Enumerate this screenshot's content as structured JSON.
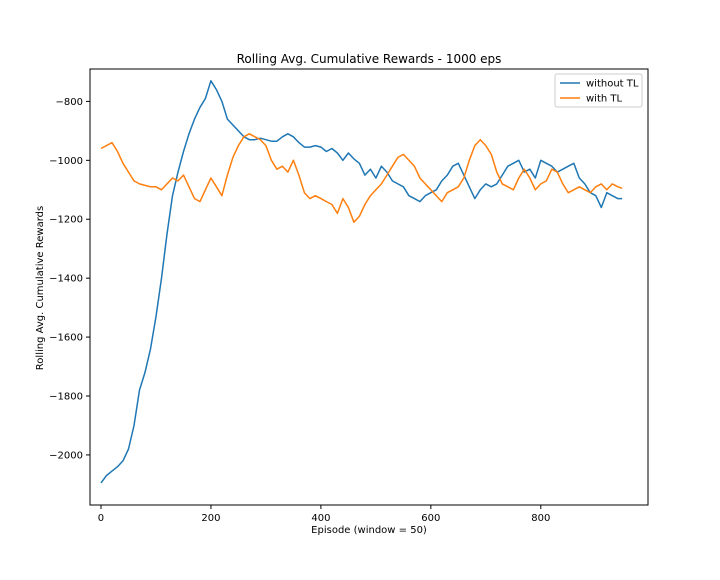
{
  "figure": {
    "title": "Rolling Avg. Cumulative Rewards - 1000 eps",
    "xlabel": "Episode (window = 50)",
    "ylabel": "Rolling Avg. Cumulative Rewards"
  },
  "chart_data": {
    "type": "line",
    "title": "Rolling Avg. Cumulative Rewards - 1000 eps",
    "xlabel": "Episode (window = 50)",
    "ylabel": "Rolling Avg. Cumulative Rewards",
    "xlim": [
      -20,
      995
    ],
    "ylim": [
      -2170,
      -690
    ],
    "xticks": [
      0,
      200,
      400,
      600,
      800
    ],
    "yticks": [
      -2000,
      -1800,
      -1600,
      -1400,
      -1200,
      -1000,
      -800
    ],
    "grid": false,
    "legend_position": "top-right",
    "series": [
      {
        "name": "without TL",
        "color": "#1f77b4",
        "x": [
          0,
          10,
          20,
          30,
          40,
          50,
          60,
          70,
          80,
          90,
          100,
          110,
          120,
          130,
          140,
          150,
          160,
          170,
          180,
          190,
          200,
          210,
          220,
          230,
          240,
          250,
          260,
          270,
          280,
          290,
          300,
          310,
          320,
          330,
          340,
          350,
          360,
          370,
          380,
          390,
          400,
          410,
          420,
          430,
          440,
          450,
          460,
          470,
          480,
          490,
          500,
          510,
          520,
          530,
          540,
          550,
          560,
          570,
          580,
          590,
          600,
          610,
          620,
          630,
          640,
          650,
          660,
          670,
          680,
          690,
          700,
          710,
          720,
          730,
          740,
          750,
          760,
          770,
          780,
          790,
          800,
          810,
          820,
          830,
          840,
          850,
          860,
          870,
          880,
          890,
          900,
          910,
          920,
          930,
          940,
          948
        ],
        "values": [
          -2095,
          -2070,
          -2055,
          -2040,
          -2020,
          -1980,
          -1900,
          -1780,
          -1720,
          -1640,
          -1530,
          -1400,
          -1250,
          -1120,
          -1040,
          -970,
          -910,
          -860,
          -820,
          -790,
          -730,
          -760,
          -800,
          -860,
          -880,
          -900,
          -920,
          -930,
          -930,
          -925,
          -930,
          -935,
          -935,
          -920,
          -910,
          -920,
          -940,
          -955,
          -955,
          -950,
          -955,
          -970,
          -960,
          -975,
          -1000,
          -975,
          -995,
          -1010,
          -1050,
          -1030,
          -1060,
          -1020,
          -1040,
          -1070,
          -1080,
          -1090,
          -1120,
          -1130,
          -1140,
          -1120,
          -1110,
          -1100,
          -1070,
          -1050,
          -1020,
          -1010,
          -1050,
          -1090,
          -1130,
          -1100,
          -1080,
          -1090,
          -1080,
          -1050,
          -1020,
          -1010,
          -1000,
          -1040,
          -1030,
          -1060,
          -1000,
          -1010,
          -1020,
          -1040,
          -1030,
          -1020,
          -1010,
          -1060,
          -1080,
          -1110,
          -1120,
          -1160,
          -1110,
          -1120,
          -1130,
          -1130
        ]
      },
      {
        "name": "with TL",
        "color": "#ff7f0e",
        "x": [
          0,
          10,
          20,
          30,
          40,
          50,
          60,
          70,
          80,
          90,
          100,
          110,
          120,
          130,
          140,
          150,
          160,
          170,
          180,
          190,
          200,
          210,
          220,
          230,
          240,
          250,
          260,
          270,
          280,
          290,
          300,
          310,
          320,
          330,
          340,
          350,
          360,
          370,
          380,
          390,
          400,
          410,
          420,
          430,
          440,
          450,
          460,
          470,
          480,
          490,
          500,
          510,
          520,
          530,
          540,
          550,
          560,
          570,
          580,
          590,
          600,
          610,
          620,
          630,
          640,
          650,
          660,
          670,
          680,
          690,
          700,
          710,
          720,
          730,
          740,
          750,
          760,
          770,
          780,
          790,
          800,
          810,
          820,
          830,
          840,
          850,
          860,
          870,
          880,
          890,
          900,
          910,
          920,
          930,
          940,
          948
        ],
        "values": [
          -960,
          -950,
          -940,
          -970,
          -1010,
          -1040,
          -1070,
          -1080,
          -1085,
          -1090,
          -1090,
          -1100,
          -1080,
          -1060,
          -1070,
          -1050,
          -1090,
          -1130,
          -1140,
          -1100,
          -1060,
          -1090,
          -1120,
          -1050,
          -990,
          -950,
          -920,
          -910,
          -920,
          -930,
          -950,
          -1000,
          -1030,
          -1020,
          -1040,
          -1000,
          -1050,
          -1110,
          -1130,
          -1120,
          -1130,
          -1140,
          -1150,
          -1180,
          -1130,
          -1160,
          -1210,
          -1190,
          -1150,
          -1120,
          -1100,
          -1080,
          -1050,
          -1020,
          -990,
          -980,
          -1000,
          -1020,
          -1060,
          -1080,
          -1100,
          -1120,
          -1140,
          -1110,
          -1100,
          -1090,
          -1060,
          -1000,
          -950,
          -930,
          -950,
          -980,
          -1040,
          -1080,
          -1090,
          -1100,
          -1060,
          -1030,
          -1060,
          -1100,
          -1080,
          -1070,
          -1030,
          -1040,
          -1080,
          -1110,
          -1100,
          -1090,
          -1100,
          -1110,
          -1090,
          -1080,
          -1100,
          -1080,
          -1090,
          -1095
        ]
      }
    ]
  }
}
